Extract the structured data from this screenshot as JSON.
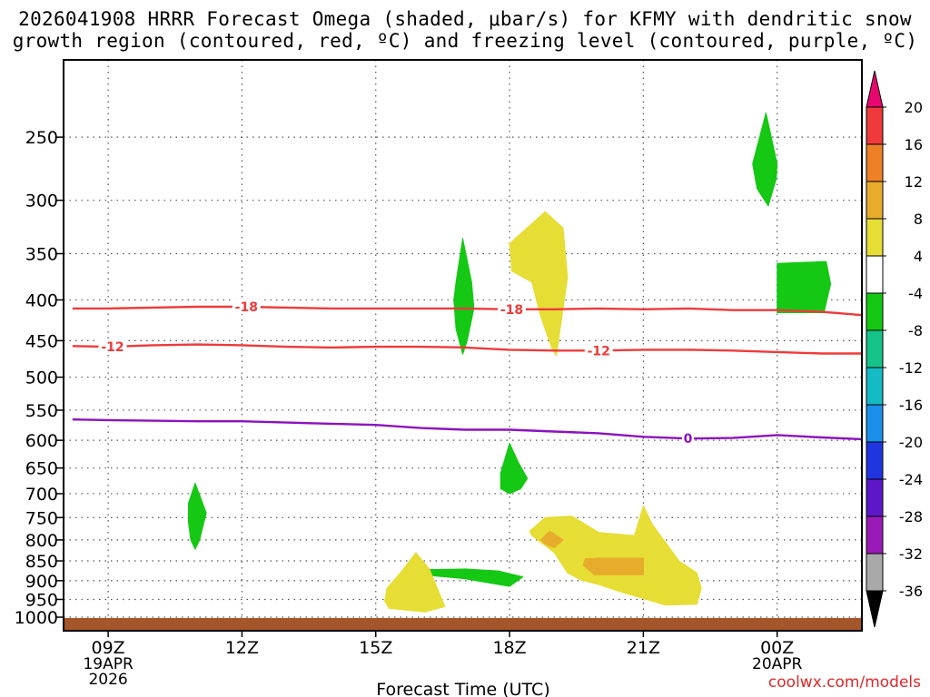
{
  "title": {
    "line1": "2026041908 HRRR Forecast Omega (shaded, μbar/s) for KFMY with dendritic snow",
    "line2": "growth region (contoured, red, ºC) and freezing level (contoured, purple, ºC)"
  },
  "credit": "coolwx.com/models",
  "chart_data": {
    "type": "heatmap",
    "title": "2026041908 HRRR Forecast Omega (shaded, μbar/s) for KFMY with dendritic snow growth region (contoured, red, ºC) and freezing level (contoured, purple, ºC)",
    "xlabel": "Forecast Time (UTC)",
    "ylabel": "",
    "xlim": [
      8,
      25.9
    ],
    "ylim": [
      1040,
      200
    ],
    "y_scale": "log",
    "grid": true,
    "x_ticks": [
      {
        "hour": 9,
        "label": "09Z",
        "sub": [
          "19APR",
          "2026"
        ]
      },
      {
        "hour": 12,
        "label": "12Z",
        "sub": []
      },
      {
        "hour": 15,
        "label": "15Z",
        "sub": []
      },
      {
        "hour": 18,
        "label": "18Z",
        "sub": []
      },
      {
        "hour": 21,
        "label": "21Z",
        "sub": []
      },
      {
        "hour": 24,
        "label": "00Z",
        "sub": [
          "20APR"
        ]
      }
    ],
    "y_ticks": [
      250,
      300,
      350,
      400,
      450,
      500,
      550,
      600,
      650,
      700,
      750,
      800,
      850,
      900,
      950,
      1000
    ],
    "ground_color": "#a5552a",
    "colorbar": {
      "labels": [
        20,
        16,
        12,
        8,
        4,
        -4,
        -8,
        -12,
        -16,
        -20,
        -24,
        -28,
        -32,
        -36
      ],
      "colors": [
        "#e8066f",
        "#ee3a3a",
        "#ee8025",
        "#e8ac2c",
        "#e6dd35",
        "#ffffff",
        "#14c814",
        "#16c48a",
        "#14bbc4",
        "#1a90ea",
        "#1f35e0",
        "#5c17c8",
        "#9a1ab8",
        "#a9a9a9",
        "#000000"
      ]
    },
    "series": [
      {
        "name": "-18",
        "color": "#ee3a3a",
        "points": [
          [
            8.2,
            410
          ],
          [
            9,
            410
          ],
          [
            10,
            409
          ],
          [
            11,
            408
          ],
          [
            12,
            408
          ],
          [
            13,
            409
          ],
          [
            14,
            410
          ],
          [
            15,
            410
          ],
          [
            16,
            410
          ],
          [
            17,
            410
          ],
          [
            18,
            411
          ],
          [
            19,
            411
          ],
          [
            20,
            410
          ],
          [
            21,
            411
          ],
          [
            22,
            410
          ],
          [
            23,
            412
          ],
          [
            24,
            412
          ],
          [
            25,
            414
          ],
          [
            25.9,
            418
          ]
        ]
      },
      {
        "name": "-12",
        "color": "#ee3a3a",
        "points": [
          [
            8.2,
            457
          ],
          [
            9,
            458
          ],
          [
            10,
            456
          ],
          [
            11,
            455
          ],
          [
            12,
            456
          ],
          [
            13,
            458
          ],
          [
            14,
            459
          ],
          [
            15,
            458
          ],
          [
            16,
            458
          ],
          [
            17,
            459
          ],
          [
            18,
            462
          ],
          [
            19,
            463
          ],
          [
            20,
            463
          ],
          [
            21,
            462
          ],
          [
            22,
            462
          ],
          [
            23,
            463
          ],
          [
            24,
            465
          ],
          [
            25,
            467
          ],
          [
            25.9,
            467
          ]
        ]
      },
      {
        "name": "0",
        "color": "#8b12c0",
        "points": [
          [
            8.2,
            565
          ],
          [
            9,
            566
          ],
          [
            10,
            567
          ],
          [
            11,
            568
          ],
          [
            12,
            568
          ],
          [
            13,
            570
          ],
          [
            14,
            572
          ],
          [
            15,
            574
          ],
          [
            16,
            579
          ],
          [
            17,
            582
          ],
          [
            18,
            582
          ],
          [
            19,
            585
          ],
          [
            20,
            588
          ],
          [
            21,
            594
          ],
          [
            22,
            597
          ],
          [
            23,
            596
          ],
          [
            24,
            591
          ],
          [
            25,
            595
          ],
          [
            25.9,
            598
          ]
        ]
      }
    ],
    "contour_labels": [
      {
        "text": "-18",
        "hour": 12.1,
        "p": 408
      },
      {
        "text": "-18",
        "hour": 18.05,
        "p": 411
      },
      {
        "text": "-12",
        "hour": 9.1,
        "p": 458
      },
      {
        "text": "-12",
        "hour": 20.0,
        "p": 463
      },
      {
        "text": "0",
        "hour": 22.0,
        "p": 597
      }
    ],
    "regions": [
      {
        "value": -6,
        "fill": "#14c814",
        "points": [
          [
            23.45,
            270
          ],
          [
            23.75,
            233
          ],
          [
            24.0,
            270
          ],
          [
            23.98,
            282
          ],
          [
            23.8,
            305
          ],
          [
            23.55,
            290
          ]
        ]
      },
      {
        "value": -6,
        "fill": "#14c814",
        "points": [
          [
            24.0,
            360
          ],
          [
            25.1,
            358
          ],
          [
            25.2,
            382
          ],
          [
            25.05,
            415
          ],
          [
            24.0,
            415
          ]
        ]
      },
      {
        "value": -6,
        "fill": "#14c814",
        "points": [
          [
            16.8,
            380
          ],
          [
            16.95,
            335
          ],
          [
            17.15,
            380
          ],
          [
            17.2,
            410
          ],
          [
            17.05,
            450
          ],
          [
            16.95,
            468
          ],
          [
            16.8,
            435
          ],
          [
            16.75,
            400
          ]
        ]
      },
      {
        "value": -6,
        "fill": "#14c814",
        "points": [
          [
            10.8,
            720
          ],
          [
            10.95,
            679
          ],
          [
            11.2,
            740
          ],
          [
            11.05,
            800
          ],
          [
            10.95,
            822
          ],
          [
            10.85,
            800
          ],
          [
            10.8,
            760
          ]
        ]
      },
      {
        "value": -6,
        "fill": "#14c814",
        "points": [
          [
            17.8,
            660
          ],
          [
            18.0,
            605
          ],
          [
            18.2,
            640
          ],
          [
            18.4,
            670
          ],
          [
            18.25,
            690
          ],
          [
            18.0,
            700
          ],
          [
            17.8,
            690
          ]
        ]
      },
      {
        "value": -6,
        "fill": "#14c814",
        "points": [
          [
            16.05,
            872
          ],
          [
            17.0,
            870
          ],
          [
            17.75,
            875
          ],
          [
            18.3,
            890
          ],
          [
            18.0,
            915
          ],
          [
            17.0,
            895
          ],
          [
            16.05,
            885
          ]
        ]
      },
      {
        "value": 6,
        "fill": "#e6dd35",
        "points": [
          [
            18.0,
            340
          ],
          [
            18.8,
            310
          ],
          [
            19.2,
            325
          ],
          [
            19.3,
            375
          ],
          [
            19.05,
            470
          ],
          [
            18.95,
            460
          ],
          [
            18.7,
            420
          ],
          [
            18.5,
            380
          ],
          [
            18.05,
            368
          ]
        ]
      },
      {
        "value": 6,
        "fill": "#e6dd35",
        "points": [
          [
            15.25,
            920
          ],
          [
            15.55,
            880
          ],
          [
            15.9,
            830
          ],
          [
            16.2,
            870
          ],
          [
            16.55,
            970
          ],
          [
            16.1,
            985
          ],
          [
            15.3,
            975
          ],
          [
            15.2,
            955
          ]
        ]
      },
      {
        "value": 6,
        "fill": "#e6dd35",
        "points": [
          [
            18.45,
            780
          ],
          [
            18.8,
            750
          ],
          [
            19.4,
            747
          ],
          [
            20.0,
            783
          ],
          [
            20.8,
            790
          ],
          [
            21.0,
            725
          ],
          [
            21.2,
            765
          ],
          [
            21.8,
            850
          ],
          [
            22.2,
            880
          ],
          [
            22.3,
            920
          ],
          [
            22.2,
            963
          ],
          [
            21.5,
            966
          ],
          [
            20.5,
            930
          ],
          [
            20.0,
            910
          ],
          [
            19.6,
            898
          ],
          [
            19.3,
            880
          ],
          [
            19.0,
            830
          ],
          [
            18.5,
            790
          ]
        ]
      },
      {
        "value": 10,
        "fill": "#e8ac2c",
        "points": [
          [
            19.7,
            845
          ],
          [
            20.0,
            843
          ],
          [
            21.0,
            843
          ],
          [
            21.0,
            885
          ],
          [
            19.9,
            885
          ],
          [
            19.65,
            860
          ]
        ]
      },
      {
        "value": 10,
        "fill": "#e8ac2c",
        "points": [
          [
            18.7,
            800
          ],
          [
            18.9,
            780
          ],
          [
            19.2,
            800
          ],
          [
            19.0,
            818
          ],
          [
            18.8,
            810
          ]
        ]
      }
    ]
  }
}
